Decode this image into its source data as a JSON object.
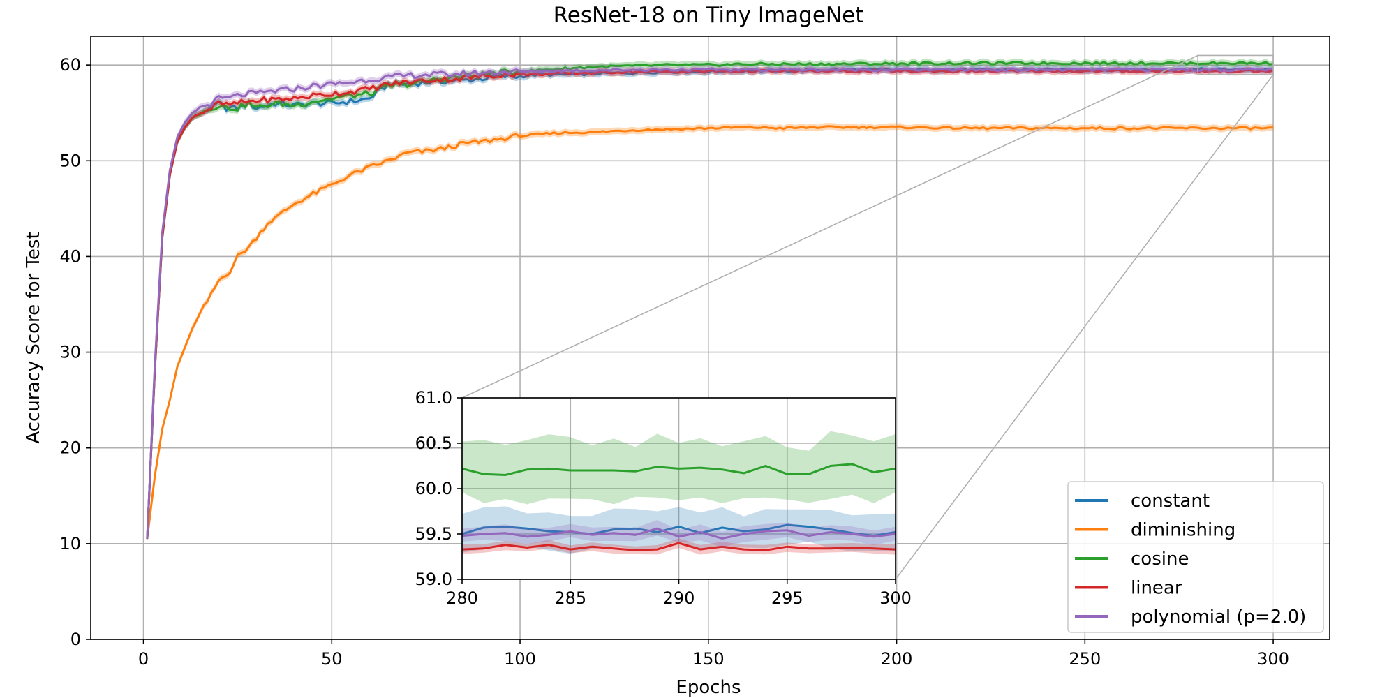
{
  "chart_data": {
    "type": "line",
    "title": "ResNet-18 on Tiny ImageNet",
    "xlabel": "Epochs",
    "ylabel": "Accuracy Score for Test",
    "xlim": [
      -14,
      315
    ],
    "ylim": [
      0,
      63
    ],
    "xticks": [
      0,
      50,
      100,
      150,
      200,
      250,
      300
    ],
    "yticks": [
      0,
      10,
      20,
      30,
      40,
      50,
      60
    ],
    "grid": true,
    "legend_position": "lower-right",
    "series": [
      {
        "name": "constant",
        "color": "#1f77b4",
        "x": [
          1,
          3,
          5,
          7,
          9,
          11,
          13,
          15,
          18,
          20,
          22,
          25,
          28,
          30,
          35,
          40,
          45,
          50,
          55,
          60,
          65,
          70,
          75,
          80,
          85,
          90,
          95,
          100,
          105,
          110,
          115,
          120,
          130,
          140,
          150,
          160,
          170,
          180,
          200,
          220,
          240,
          260,
          280,
          300
        ],
        "y": [
          10.5,
          28,
          42,
          48.5,
          52,
          53.5,
          54.5,
          55,
          55.5,
          56,
          55.5,
          55.5,
          56,
          55.5,
          56,
          55.8,
          56,
          56,
          56.2,
          56.5,
          58,
          58,
          58.2,
          58.3,
          58.4,
          58.6,
          58.8,
          58.8,
          59,
          59,
          59,
          59.1,
          59.2,
          59.3,
          59.3,
          59.4,
          59.4,
          59.5,
          59.5,
          59.5,
          59.5,
          59.5,
          59.55,
          59.5
        ]
      },
      {
        "name": "diminishing",
        "color": "#ff7f0e",
        "x": [
          1,
          3,
          5,
          7,
          9,
          11,
          13,
          15,
          18,
          20,
          23,
          25,
          28,
          30,
          33,
          35,
          40,
          45,
          50,
          55,
          60,
          65,
          70,
          75,
          80,
          85,
          90,
          95,
          100,
          110,
          120,
          130,
          140,
          150,
          160,
          170,
          180,
          200,
          220,
          240,
          260,
          280,
          300
        ],
        "y": [
          10.5,
          17,
          22,
          25,
          28.5,
          30.5,
          32.5,
          34,
          36,
          37.5,
          38.5,
          40,
          41,
          42,
          43.5,
          44,
          45.5,
          46.5,
          47.5,
          48.5,
          49.3,
          50,
          50.8,
          51,
          51.3,
          51.8,
          52,
          52.3,
          52.6,
          52.9,
          53,
          53.2,
          53.3,
          53.4,
          53.5,
          53.4,
          53.5,
          53.5,
          53.4,
          53.4,
          53.4,
          53.4,
          53.4
        ]
      },
      {
        "name": "cosine",
        "color": "#2ca02c",
        "x": [
          1,
          3,
          5,
          7,
          9,
          11,
          13,
          15,
          18,
          20,
          22,
          25,
          28,
          30,
          35,
          40,
          45,
          50,
          55,
          60,
          65,
          70,
          75,
          80,
          85,
          90,
          95,
          100,
          110,
          120,
          130,
          140,
          150,
          160,
          170,
          180,
          200,
          220,
          240,
          260,
          280,
          300
        ],
        "y": [
          10.5,
          28,
          42,
          48.5,
          52,
          53.5,
          54.5,
          55,
          55.5,
          55.8,
          55.5,
          55.5,
          56,
          55.5,
          56,
          55.8,
          56.2,
          56.5,
          56.8,
          57,
          57.8,
          58,
          58.3,
          58.6,
          58.8,
          59,
          59.2,
          59.3,
          59.6,
          59.8,
          59.9,
          60,
          60,
          60.1,
          60.1,
          60.1,
          60.15,
          60.2,
          60.2,
          60.2,
          60.2,
          60.2
        ]
      },
      {
        "name": "linear",
        "color": "#d62728",
        "x": [
          1,
          3,
          5,
          7,
          9,
          11,
          13,
          15,
          18,
          20,
          22,
          25,
          28,
          30,
          35,
          40,
          45,
          50,
          55,
          60,
          65,
          70,
          75,
          80,
          85,
          90,
          95,
          100,
          110,
          120,
          130,
          140,
          150,
          160,
          170,
          180,
          200,
          220,
          240,
          260,
          280,
          300
        ],
        "y": [
          10.5,
          28,
          42,
          48.5,
          52,
          53.5,
          54.5,
          55,
          55.5,
          56,
          55.8,
          56,
          56.2,
          56.3,
          56.4,
          56.5,
          56.8,
          57,
          57.2,
          57.5,
          58,
          58.2,
          58.4,
          58.5,
          58.6,
          58.8,
          59,
          59,
          59.1,
          59.2,
          59.3,
          59.3,
          59.35,
          59.35,
          59.35,
          59.35,
          59.35,
          59.35,
          59.35,
          59.35,
          59.35,
          59.35
        ]
      },
      {
        "name": "polynomial (p=2.0)",
        "color": "#9467bd",
        "x": [
          1,
          3,
          5,
          7,
          9,
          11,
          13,
          15,
          18,
          20,
          22,
          25,
          28,
          30,
          35,
          40,
          45,
          50,
          55,
          60,
          65,
          70,
          75,
          80,
          85,
          90,
          95,
          100,
          110,
          120,
          130,
          140,
          150,
          160,
          170,
          180,
          200,
          220,
          240,
          260,
          280,
          300
        ],
        "y": [
          10.5,
          28.5,
          42.5,
          49,
          52.5,
          54,
          55,
          55.5,
          56,
          56.5,
          56.5,
          56.8,
          57,
          57,
          57.3,
          57.5,
          57.8,
          58,
          58.2,
          58.5,
          58.7,
          58.9,
          59,
          59,
          59.1,
          59.2,
          59.3,
          59.3,
          59.4,
          59.45,
          59.5,
          59.5,
          59.5,
          59.5,
          59.5,
          59.5,
          59.5,
          59.5,
          59.5,
          59.5,
          59.5,
          59.5
        ]
      }
    ],
    "inset": {
      "xlim": [
        280,
        300
      ],
      "ylim": [
        59.0,
        61.0
      ],
      "xticks": [
        280,
        285,
        290,
        295,
        300
      ],
      "yticks": [
        "59.0",
        "59.5",
        "60.0",
        "60.5",
        "61.0"
      ],
      "x": [
        280,
        281,
        282,
        283,
        284,
        285,
        286,
        287,
        288,
        289,
        290,
        291,
        292,
        293,
        294,
        295,
        296,
        297,
        298,
        299,
        300
      ],
      "series": [
        {
          "name": "constant",
          "color": "#1f77b4",
          "y": [
            59.5,
            59.57,
            59.58,
            59.56,
            59.53,
            59.52,
            59.5,
            59.55,
            59.56,
            59.52,
            59.58,
            59.51,
            59.57,
            59.53,
            59.55,
            59.6,
            59.58,
            59.55,
            59.51,
            59.48,
            59.52
          ],
          "band": 0.2
        },
        {
          "name": "cosine",
          "color": "#2ca02c",
          "y": [
            60.22,
            60.16,
            60.15,
            60.21,
            60.22,
            60.2,
            60.2,
            60.2,
            60.19,
            60.24,
            60.22,
            60.23,
            60.21,
            60.17,
            60.25,
            60.16,
            60.16,
            60.25,
            60.27,
            60.18,
            60.22
          ],
          "band": 0.32
        },
        {
          "name": "linear",
          "color": "#d62728",
          "y": [
            59.33,
            59.34,
            59.38,
            59.35,
            59.38,
            59.33,
            59.36,
            59.34,
            59.32,
            59.33,
            59.4,
            59.33,
            59.36,
            59.33,
            59.32,
            59.36,
            59.34,
            59.34,
            59.35,
            59.34,
            59.33
          ],
          "band": 0.05
        },
        {
          "name": "polynomial (p=2.0)",
          "color": "#9467bd",
          "y": [
            59.48,
            59.5,
            59.51,
            59.47,
            59.49,
            59.53,
            59.49,
            59.51,
            59.49,
            59.56,
            59.47,
            59.52,
            59.45,
            59.5,
            59.53,
            59.54,
            59.48,
            59.52,
            59.5,
            59.47,
            59.5
          ],
          "band": 0.08
        }
      ]
    }
  }
}
